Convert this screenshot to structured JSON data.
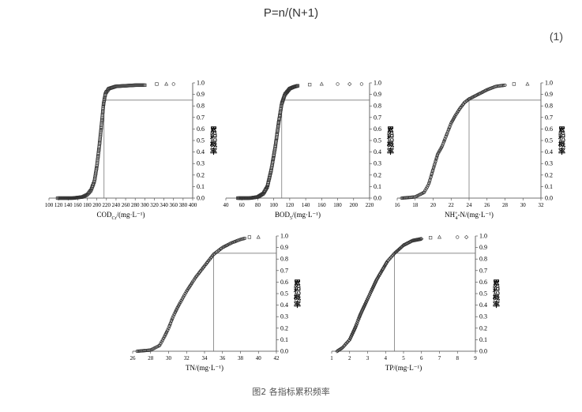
{
  "formula": "P=n/(N+1)",
  "equation_number": "(1)",
  "figure_caption": "图2 各指标累积频率",
  "chart_data": [
    {
      "type": "scatter",
      "id": "cod",
      "xlabel": "COD",
      "xlabel_sub": "Cr",
      "xlabel_unit": "/(mg·L⁻¹)",
      "ylabel": "累积概率",
      "xlim": [
        100,
        400
      ],
      "xticks": [
        100,
        120,
        140,
        160,
        180,
        200,
        220,
        240,
        260,
        280,
        300,
        320,
        340,
        360,
        380,
        400
      ],
      "ylim": [
        0,
        1
      ],
      "yticks": [
        0.0,
        0.1,
        0.2,
        0.3,
        0.4,
        0.5,
        0.6,
        0.7,
        0.8,
        0.9,
        1.0
      ],
      "reference": {
        "x": 215,
        "y": 0.85
      },
      "curve": [
        [
          118,
          0.0
        ],
        [
          150,
          0.0
        ],
        [
          170,
          0.01
        ],
        [
          180,
          0.03
        ],
        [
          188,
          0.07
        ],
        [
          195,
          0.15
        ],
        [
          200,
          0.28
        ],
        [
          205,
          0.45
        ],
        [
          210,
          0.65
        ],
        [
          214,
          0.82
        ],
        [
          218,
          0.91
        ],
        [
          225,
          0.95
        ],
        [
          240,
          0.97
        ],
        [
          260,
          0.975
        ],
        [
          280,
          0.98
        ],
        [
          300,
          0.98
        ]
      ],
      "outliers": [
        [
          325,
          0.99
        ],
        [
          345,
          0.99
        ],
        [
          360,
          0.99
        ]
      ],
      "grid": false
    },
    {
      "type": "scatter",
      "id": "bod",
      "xlabel": "BOD",
      "xlabel_sub": "5",
      "xlabel_unit": "/(mg·L⁻¹)",
      "ylabel": "累积概率",
      "xlim": [
        40,
        220
      ],
      "xticks": [
        40,
        60,
        80,
        100,
        120,
        140,
        160,
        180,
        200,
        220
      ],
      "ylim": [
        0,
        1
      ],
      "yticks": [
        0.0,
        0.1,
        0.2,
        0.3,
        0.4,
        0.5,
        0.6,
        0.7,
        0.8,
        0.9,
        1.0
      ],
      "reference": {
        "x": 110,
        "y": 0.85
      },
      "curve": [
        [
          55,
          0.0
        ],
        [
          70,
          0.0
        ],
        [
          80,
          0.01
        ],
        [
          87,
          0.04
        ],
        [
          92,
          0.1
        ],
        [
          97,
          0.25
        ],
        [
          102,
          0.45
        ],
        [
          106,
          0.65
        ],
        [
          110,
          0.82
        ],
        [
          114,
          0.9
        ],
        [
          120,
          0.95
        ],
        [
          125,
          0.965
        ],
        [
          130,
          0.975
        ]
      ],
      "outliers": [
        [
          145,
          0.985
        ],
        [
          160,
          0.99
        ],
        [
          180,
          0.99
        ],
        [
          195,
          0.99
        ],
        [
          210,
          0.99
        ]
      ],
      "grid": false
    },
    {
      "type": "scatter",
      "id": "nh",
      "xlabel": "NH",
      "xlabel_sub": "4",
      "xlabel_sup": "+",
      "xlabel_unit": "-N/(mg·L⁻¹)",
      "ylabel": "累积概率",
      "xlim": [
        16,
        32
      ],
      "xticks": [
        16,
        18,
        20,
        22,
        24,
        26,
        28,
        30,
        32
      ],
      "ylim": [
        0,
        1
      ],
      "yticks": [
        0.0,
        0.1,
        0.2,
        0.3,
        0.4,
        0.5,
        0.6,
        0.7,
        0.8,
        0.9,
        1.0
      ],
      "reference": {
        "x": 24,
        "y": 0.85
      },
      "curve": [
        [
          16.5,
          0.0
        ],
        [
          18,
          0.01
        ],
        [
          19,
          0.05
        ],
        [
          19.5,
          0.12
        ],
        [
          20,
          0.25
        ],
        [
          20.5,
          0.38
        ],
        [
          21,
          0.45
        ],
        [
          21.5,
          0.55
        ],
        [
          22,
          0.65
        ],
        [
          22.5,
          0.72
        ],
        [
          23,
          0.78
        ],
        [
          23.5,
          0.83
        ],
        [
          24,
          0.86
        ],
        [
          25,
          0.9
        ],
        [
          26,
          0.94
        ],
        [
          27,
          0.97
        ],
        [
          28,
          0.98
        ]
      ],
      "outliers": [
        [
          29,
          0.99
        ],
        [
          30.5,
          0.99
        ]
      ],
      "grid": false
    },
    {
      "type": "scatter",
      "id": "tn",
      "xlabel": "TN",
      "xlabel_unit": "/(mg·L⁻¹)",
      "ylabel": "累积概率",
      "xlim": [
        26,
        42
      ],
      "xticks": [
        26,
        28,
        30,
        32,
        34,
        36,
        38,
        40,
        42
      ],
      "ylim": [
        0,
        1
      ],
      "yticks": [
        0.0,
        0.1,
        0.2,
        0.3,
        0.4,
        0.5,
        0.6,
        0.7,
        0.8,
        0.9,
        1.0
      ],
      "reference": {
        "x": 35,
        "y": 0.85
      },
      "curve": [
        [
          26.5,
          0.0
        ],
        [
          28,
          0.01
        ],
        [
          29,
          0.05
        ],
        [
          29.5,
          0.12
        ],
        [
          30,
          0.2
        ],
        [
          30.5,
          0.3
        ],
        [
          31,
          0.38
        ],
        [
          31.5,
          0.45
        ],
        [
          32,
          0.52
        ],
        [
          32.5,
          0.58
        ],
        [
          33,
          0.64
        ],
        [
          34,
          0.74
        ],
        [
          35,
          0.84
        ],
        [
          36,
          0.9
        ],
        [
          37,
          0.94
        ],
        [
          38,
          0.97
        ],
        [
          38.5,
          0.98
        ]
      ],
      "outliers": [
        [
          39,
          0.99
        ],
        [
          40,
          0.99
        ]
      ],
      "grid": false
    },
    {
      "type": "scatter",
      "id": "tp",
      "xlabel": "TP",
      "xlabel_unit": "/(mg·L⁻¹)",
      "ylabel": "累积概率",
      "xlim": [
        1,
        9
      ],
      "xticks": [
        1,
        2,
        3,
        4,
        5,
        6,
        7,
        8,
        9
      ],
      "ylim": [
        0,
        1
      ],
      "yticks": [
        0.0,
        0.1,
        0.2,
        0.3,
        0.4,
        0.5,
        0.6,
        0.7,
        0.8,
        0.9,
        1.0
      ],
      "reference": {
        "x": 4.5,
        "y": 0.85
      },
      "curve": [
        [
          1.3,
          0.0
        ],
        [
          1.6,
          0.03
        ],
        [
          2,
          0.1
        ],
        [
          2.3,
          0.2
        ],
        [
          2.6,
          0.32
        ],
        [
          2.9,
          0.42
        ],
        [
          3.2,
          0.52
        ],
        [
          3.5,
          0.62
        ],
        [
          3.8,
          0.7
        ],
        [
          4.1,
          0.78
        ],
        [
          4.5,
          0.85
        ],
        [
          5,
          0.92
        ],
        [
          5.5,
          0.96
        ],
        [
          6,
          0.975
        ]
      ],
      "outliers": [
        [
          6.5,
          0.985
        ],
        [
          7,
          0.99
        ],
        [
          8,
          0.99
        ],
        [
          8.5,
          0.99
        ]
      ],
      "grid": false
    }
  ]
}
